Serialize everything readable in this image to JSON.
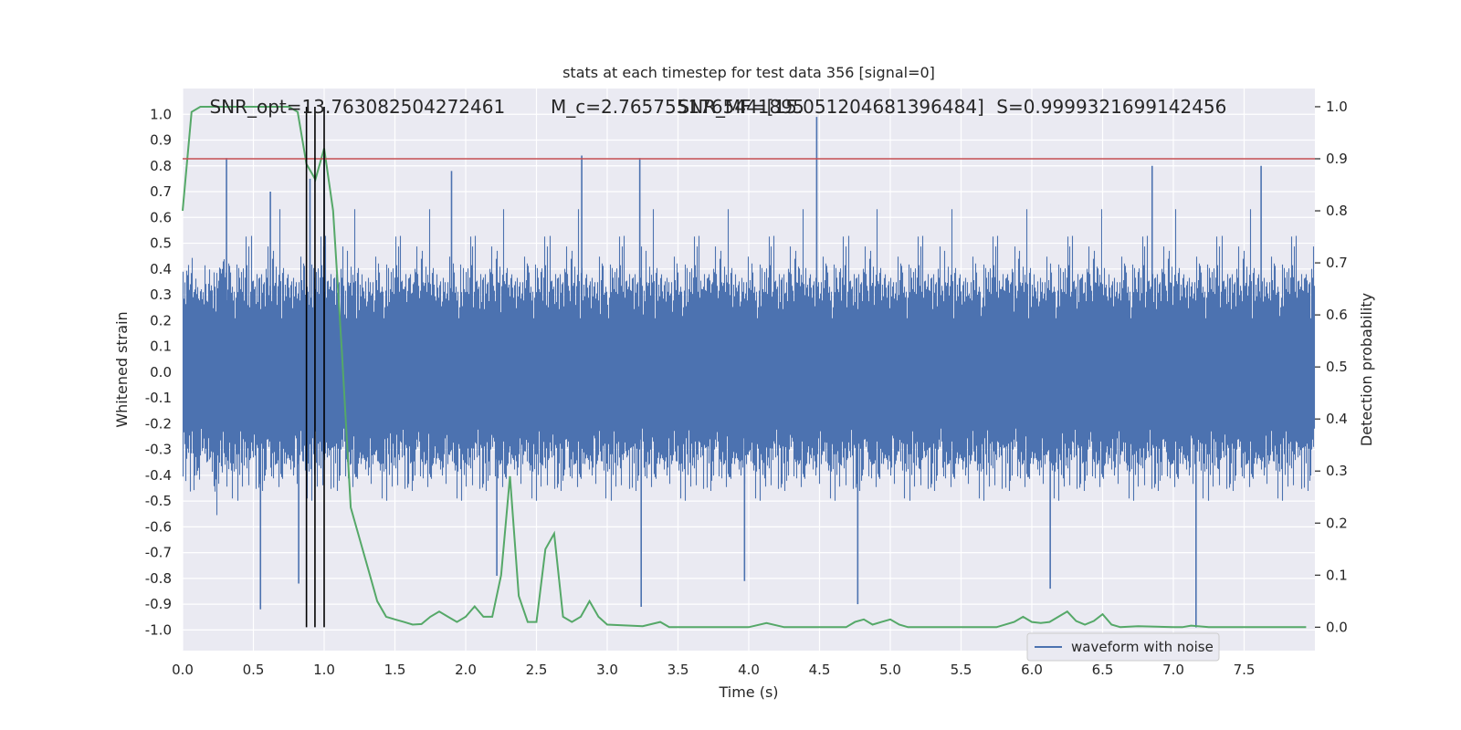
{
  "chart_data": {
    "type": "line",
    "title": "stats at each timestep for test data 356 [signal=0]",
    "xlabel": "Time (s)",
    "ylabel": "Whitened strain",
    "y2label": "Detection probability",
    "xlim": [
      0,
      8.0
    ],
    "ylim": [
      -1.08,
      1.1
    ],
    "y2lim": [
      -0.045,
      1.035
    ],
    "xticks": [
      "0.0",
      "0.5",
      "1.0",
      "1.5",
      "2.0",
      "2.5",
      "3.0",
      "3.5",
      "4.0",
      "4.5",
      "5.0",
      "5.5",
      "6.0",
      "6.5",
      "7.0",
      "7.5"
    ],
    "yticks": [
      "-1.0",
      "-0.9",
      "-0.8",
      "-0.7",
      "-0.6",
      "-0.5",
      "-0.4",
      "-0.3",
      "-0.2",
      "-0.1",
      "0.0",
      "0.1",
      "0.2",
      "0.3",
      "0.4",
      "0.5",
      "0.6",
      "0.7",
      "0.8",
      "0.9",
      "1.0"
    ],
    "y2ticks": [
      "0.0",
      "0.1",
      "0.2",
      "0.3",
      "0.4",
      "0.5",
      "0.6",
      "0.7",
      "0.8",
      "0.9",
      "1.0"
    ],
    "grid": true,
    "legend_position": "lower-right",
    "annotations": [
      {
        "text": "SNR_opt=13.763082504272461",
        "x": 0.19
      },
      {
        "text": "M_c=2.7657551765441895",
        "x": 2.6,
        "math": true
      },
      {
        "text": "SNR_MF=[15.051204681396484]",
        "x": 3.5
      },
      {
        "text": "S=0.9999321699142456",
        "x": 5.75
      }
    ],
    "threshold": {
      "value": 0.9,
      "axis": "y2",
      "color": "#c44e52"
    },
    "vertical_lines": [
      {
        "x": 0.875,
        "y2_range": [
          0.0,
          1.0
        ]
      },
      {
        "x": 0.935,
        "y2_range": [
          0.0,
          1.0
        ]
      },
      {
        "x": 1.0,
        "y2_range": [
          0.0,
          1.0
        ]
      }
    ],
    "series": [
      {
        "name": "waveform with noise",
        "axis": "y",
        "color": "#4c72b0",
        "envelope": {
          "p99": 0.38,
          "p999": 0.55
        },
        "spikes": [
          {
            "x": 0.31,
            "y": 0.83
          },
          {
            "x": 0.55,
            "y": -0.92
          },
          {
            "x": 0.62,
            "y": 0.7
          },
          {
            "x": 0.82,
            "y": -0.82
          },
          {
            "x": 0.9,
            "y": 0.75
          },
          {
            "x": 1.0,
            "y": 0.84
          },
          {
            "x": 1.9,
            "y": 0.78
          },
          {
            "x": 2.22,
            "y": -0.79
          },
          {
            "x": 2.82,
            "y": 0.84
          },
          {
            "x": 3.23,
            "y": 0.83
          },
          {
            "x": 3.24,
            "y": -0.91
          },
          {
            "x": 3.97,
            "y": -0.81
          },
          {
            "x": 4.48,
            "y": 0.99
          },
          {
            "x": 4.77,
            "y": -0.9
          },
          {
            "x": 6.13,
            "y": -0.84
          },
          {
            "x": 6.85,
            "y": 0.8
          },
          {
            "x": 7.16,
            "y": -0.99
          },
          {
            "x": 7.62,
            "y": 0.8
          }
        ]
      },
      {
        "name": "",
        "axis": "y2",
        "color": "#55a868",
        "x": [
          0.0,
          0.063,
          0.125,
          0.188,
          0.25,
          0.313,
          0.375,
          0.438,
          0.5,
          0.563,
          0.625,
          0.688,
          0.75,
          0.813,
          0.875,
          0.938,
          1.0,
          1.063,
          1.125,
          1.188,
          1.25,
          1.313,
          1.375,
          1.438,
          1.5,
          1.563,
          1.625,
          1.688,
          1.75,
          1.813,
          1.875,
          1.938,
          2.0,
          2.063,
          2.125,
          2.188,
          2.25,
          2.313,
          2.375,
          2.438,
          2.5,
          2.563,
          2.625,
          2.688,
          2.75,
          2.813,
          2.875,
          2.938,
          3.0,
          3.25,
          3.375,
          3.438,
          3.5,
          3.75,
          4.0,
          4.125,
          4.25,
          4.5,
          4.625,
          4.688,
          4.75,
          4.813,
          4.875,
          4.938,
          5.0,
          5.063,
          5.125,
          5.25,
          5.5,
          5.75,
          5.875,
          5.938,
          6.0,
          6.063,
          6.125,
          6.188,
          6.25,
          6.313,
          6.375,
          6.438,
          6.5,
          6.563,
          6.625,
          6.75,
          7.0,
          7.063,
          7.125,
          7.25,
          7.5,
          7.75,
          7.938
        ],
        "values": [
          0.8,
          0.99,
          1.0,
          1.0,
          1.0,
          1.0,
          1.0,
          1.0,
          1.0,
          1.0,
          1.0,
          1.0,
          1.0,
          0.99,
          0.89,
          0.86,
          0.92,
          0.8,
          0.53,
          0.23,
          0.17,
          0.11,
          0.05,
          0.02,
          0.015,
          0.01,
          0.005,
          0.006,
          0.02,
          0.03,
          0.02,
          0.01,
          0.02,
          0.04,
          0.02,
          0.02,
          0.1,
          0.29,
          0.06,
          0.01,
          0.01,
          0.15,
          0.18,
          0.02,
          0.01,
          0.02,
          0.05,
          0.02,
          0.005,
          0.002,
          0.01,
          0.0,
          0.0,
          0.0,
          0.0,
          0.008,
          0.0,
          0.0,
          0.0,
          0.0,
          0.01,
          0.015,
          0.005,
          0.01,
          0.015,
          0.005,
          0.0,
          0.0,
          0.0,
          0.0,
          0.01,
          0.02,
          0.01,
          0.008,
          0.01,
          0.02,
          0.03,
          0.012,
          0.005,
          0.012,
          0.025,
          0.005,
          0.0,
          0.002,
          0.0,
          0.0,
          0.003,
          0.0,
          0.0,
          0.0,
          0.0
        ]
      }
    ]
  }
}
